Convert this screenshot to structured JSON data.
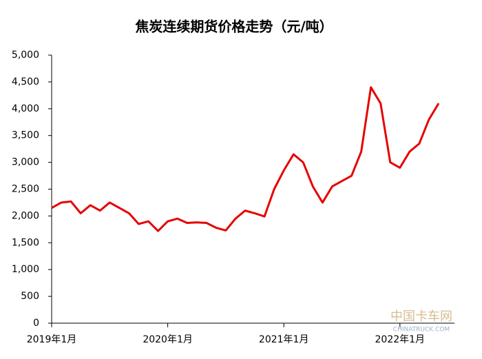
{
  "chart_data": {
    "type": "line",
    "title": "焦炭连续期货价格走势（元/吨）",
    "x": [
      "2019-01",
      "2019-02",
      "2019-03",
      "2019-04",
      "2019-05",
      "2019-06",
      "2019-07",
      "2019-08",
      "2019-09",
      "2019-10",
      "2019-11",
      "2019-12",
      "2020-01",
      "2020-02",
      "2020-03",
      "2020-04",
      "2020-05",
      "2020-06",
      "2020-07",
      "2020-08",
      "2020-09",
      "2020-10",
      "2020-11",
      "2020-12",
      "2021-01",
      "2021-02",
      "2021-03",
      "2021-04",
      "2021-05",
      "2021-06",
      "2021-07",
      "2021-08",
      "2021-09",
      "2021-10",
      "2021-11",
      "2021-12",
      "2022-01",
      "2022-02",
      "2022-03",
      "2022-04",
      "2022-05"
    ],
    "series": [
      {
        "name": "焦炭连续",
        "color": "#e60000",
        "values": [
          2150,
          2250,
          2270,
          2050,
          2200,
          2100,
          2250,
          2150,
          2050,
          1850,
          1900,
          1720,
          1900,
          1950,
          1870,
          1880,
          1870,
          1780,
          1730,
          1950,
          2100,
          2050,
          1990,
          2500,
          2850,
          3150,
          3000,
          2550,
          2250,
          2550,
          2650,
          2750,
          3200,
          4400,
          4100,
          3000,
          2900,
          3200,
          3350,
          3800,
          4100
        ]
      }
    ],
    "xlim": [
      "2019-01",
      "2022-05"
    ],
    "xticks": [
      {
        "value": "2019-01",
        "label": "2019年1月"
      },
      {
        "value": "2020-01",
        "label": "2020年1月"
      },
      {
        "value": "2021-01",
        "label": "2021年1月"
      },
      {
        "value": "2022-01",
        "label": "2022年1月"
      }
    ],
    "ylim": [
      0,
      5000
    ],
    "yticks": [
      0,
      500,
      {
        "value": 1000,
        "label": "1,000"
      },
      {
        "value": 1500,
        "label": "1,500"
      },
      {
        "value": 2000,
        "label": "2,000"
      },
      {
        "value": 2500,
        "label": "2,500"
      },
      {
        "value": 3000,
        "label": "3,000"
      },
      {
        "value": 3500,
        "label": "3,500"
      },
      {
        "value": 4000,
        "label": "4,000"
      },
      {
        "value": 4500,
        "label": "4,500"
      },
      {
        "value": 5000,
        "label": "5,000"
      }
    ],
    "grid": false
  },
  "watermark": {
    "text": "中国卡车网",
    "subtext": "CHINATRUCK.COM"
  }
}
